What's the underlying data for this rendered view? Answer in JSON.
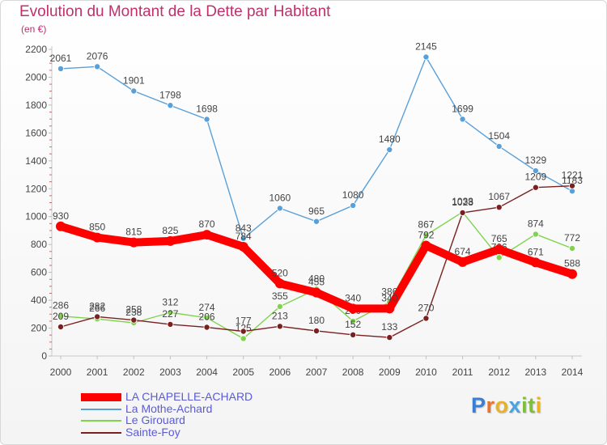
{
  "header": {
    "title": "Evolution du Montant de la Dette par Habitant",
    "unit": "(en €)"
  },
  "brand": {
    "letters": [
      "P",
      "r",
      "o",
      "x",
      "i",
      "t",
      "i"
    ],
    "colors": [
      "#3b7fd4",
      "#e8732a",
      "#e8b12a",
      "#4aa3df",
      "#7cbf3a",
      "#7cbf3a",
      "#e8b12a"
    ]
  },
  "chart_data": {
    "type": "line",
    "title": "Evolution du Montant de la Dette par Habitant",
    "ylabel": "(en €)",
    "xlabel": "",
    "ylim": [
      0,
      2200
    ],
    "yticks": [
      0,
      200,
      400,
      600,
      800,
      1000,
      1200,
      1400,
      1600,
      1800,
      2000,
      2200
    ],
    "categories": [
      "2000",
      "2001",
      "2002",
      "2003",
      "2004",
      "2005",
      "2006",
      "2007",
      "2008",
      "2009",
      "2010",
      "2011",
      "2012",
      "2013",
      "2014"
    ],
    "grid": false,
    "legend_position": "bottom-left",
    "series": [
      {
        "name": "LA CHAPELLE-ACHARD",
        "color": "#ff0000",
        "emphasis": true,
        "values": [
          930,
          850,
          815,
          825,
          870,
          784,
          520,
          455,
          340,
          340,
          792,
          674,
          765,
          671,
          588
        ]
      },
      {
        "name": "La Mothe-Achard",
        "color": "#5aa0d8",
        "values": [
          2061,
          2076,
          1901,
          1798,
          1698,
          843,
          1060,
          965,
          1080,
          1480,
          2145,
          1699,
          1504,
          1329,
          1183
        ]
      },
      {
        "name": "Le Girouard",
        "color": "#7fd34e",
        "values": [
          286,
          266,
          238,
          312,
          274,
          125,
          355,
          480,
          250,
          386,
          867,
          1033,
          706,
          874,
          772
        ]
      },
      {
        "name": "Sainte-Foy",
        "color": "#7a2020",
        "values": [
          209,
          282,
          258,
          227,
          206,
          177,
          213,
          180,
          152,
          133,
          270,
          1028,
          1067,
          1209,
          1221
        ]
      }
    ]
  }
}
